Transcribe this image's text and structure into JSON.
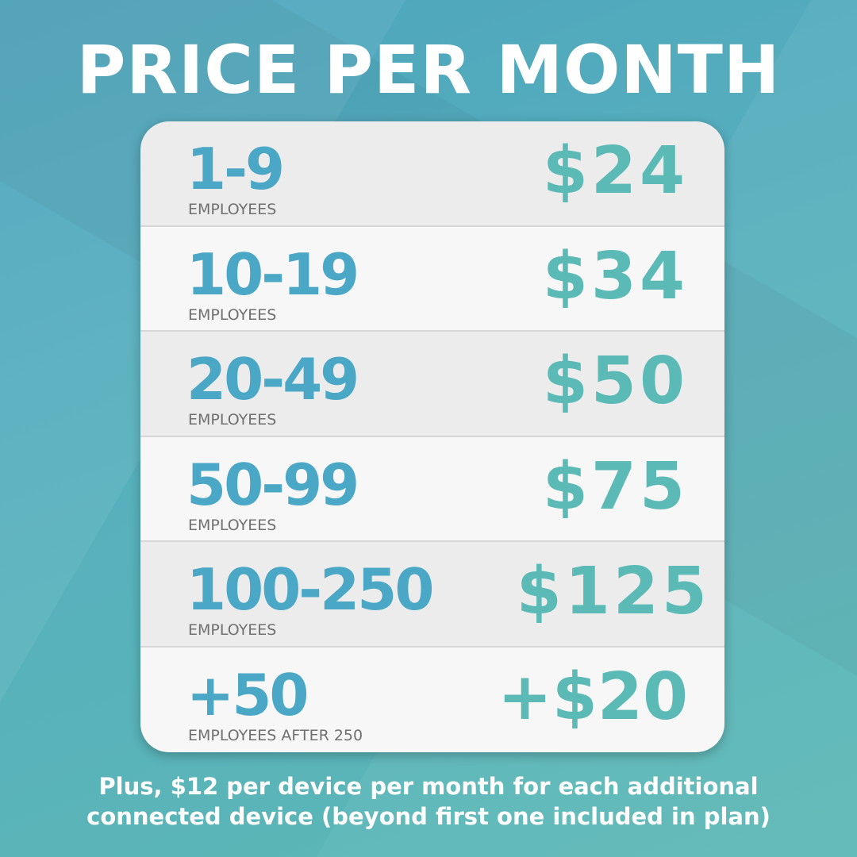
{
  "title": "PRICE PER MONTH",
  "tiers": [
    {
      "range": "1-9",
      "label": "EMPLOYEES",
      "price": "$24"
    },
    {
      "range": "10-19",
      "label": "EMPLOYEES",
      "price": "$34"
    },
    {
      "range": "20-49",
      "label": "EMPLOYEES",
      "price": "$50"
    },
    {
      "range": "50-99",
      "label": "EMPLOYEES",
      "price": "$75"
    },
    {
      "range": "100-250",
      "label": "EMPLOYEES",
      "price": "$125"
    },
    {
      "range": "+50",
      "label": "EMPLOYEES AFTER 250",
      "price": "+$20"
    }
  ],
  "footer": {
    "line1": "Plus, $12 per device per month for each additional",
    "line2": "connected device (beyond first one included in plan)"
  },
  "colors": {
    "range": "#4aa7c5",
    "price": "#5bbab5",
    "background": "#55adbd"
  }
}
